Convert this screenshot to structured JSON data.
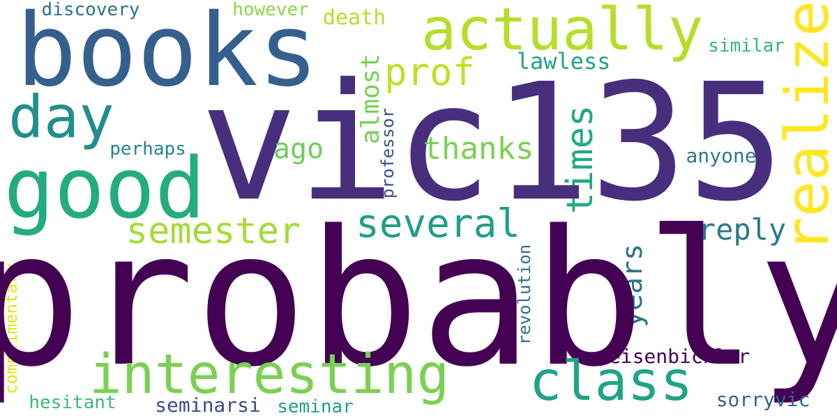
{
  "words": [
    {
      "text": "probably",
      "color": "#440154"
    },
    {
      "text": "vic135",
      "color": "#472f7d"
    },
    {
      "text": "books",
      "color": "#355f8d"
    },
    {
      "text": "actually",
      "color": "#b5de2b"
    },
    {
      "text": "good",
      "color": "#25ab82"
    },
    {
      "text": "interesting",
      "color": "#7ad151"
    },
    {
      "text": "class",
      "color": "#20a386"
    },
    {
      "text": "day",
      "color": "#218f8d"
    },
    {
      "text": "realize",
      "color": "#fde725"
    },
    {
      "text": "several",
      "color": "#1f9e89"
    },
    {
      "text": "semester",
      "color": "#a5db36"
    },
    {
      "text": "prof",
      "color": "#c2df23"
    },
    {
      "text": "thanks",
      "color": "#7ad151"
    },
    {
      "text": "times",
      "color": "#22a884"
    },
    {
      "text": "almost",
      "color": "#75d054"
    },
    {
      "text": "ago",
      "color": "#6ccd5a"
    },
    {
      "text": "years",
      "color": "#2c728e"
    },
    {
      "text": "reply",
      "color": "#2a788e"
    },
    {
      "text": "death",
      "color": "#b8de29"
    },
    {
      "text": "lawless",
      "color": "#20a386"
    },
    {
      "text": "professor",
      "color": "#3e4c8a"
    },
    {
      "text": "revolution",
      "color": "#2c728e"
    },
    {
      "text": "eisenbichler",
      "color": "#440154"
    },
    {
      "text": "sorryvic",
      "color": "#33638d"
    },
    {
      "text": "complimentary",
      "color": "#e5e419"
    },
    {
      "text": "hesitant",
      "color": "#3aba76"
    },
    {
      "text": "seminarsi",
      "color": "#3e4a89"
    },
    {
      "text": "seminar",
      "color": "#1fa088"
    },
    {
      "text": "discovery",
      "color": "#2c718e"
    },
    {
      "text": "however",
      "color": "#8ed645"
    },
    {
      "text": "similar",
      "color": "#35b779"
    },
    {
      "text": "perhaps",
      "color": "#24868e"
    },
    {
      "text": "anyone",
      "color": "#297b8e"
    }
  ]
}
